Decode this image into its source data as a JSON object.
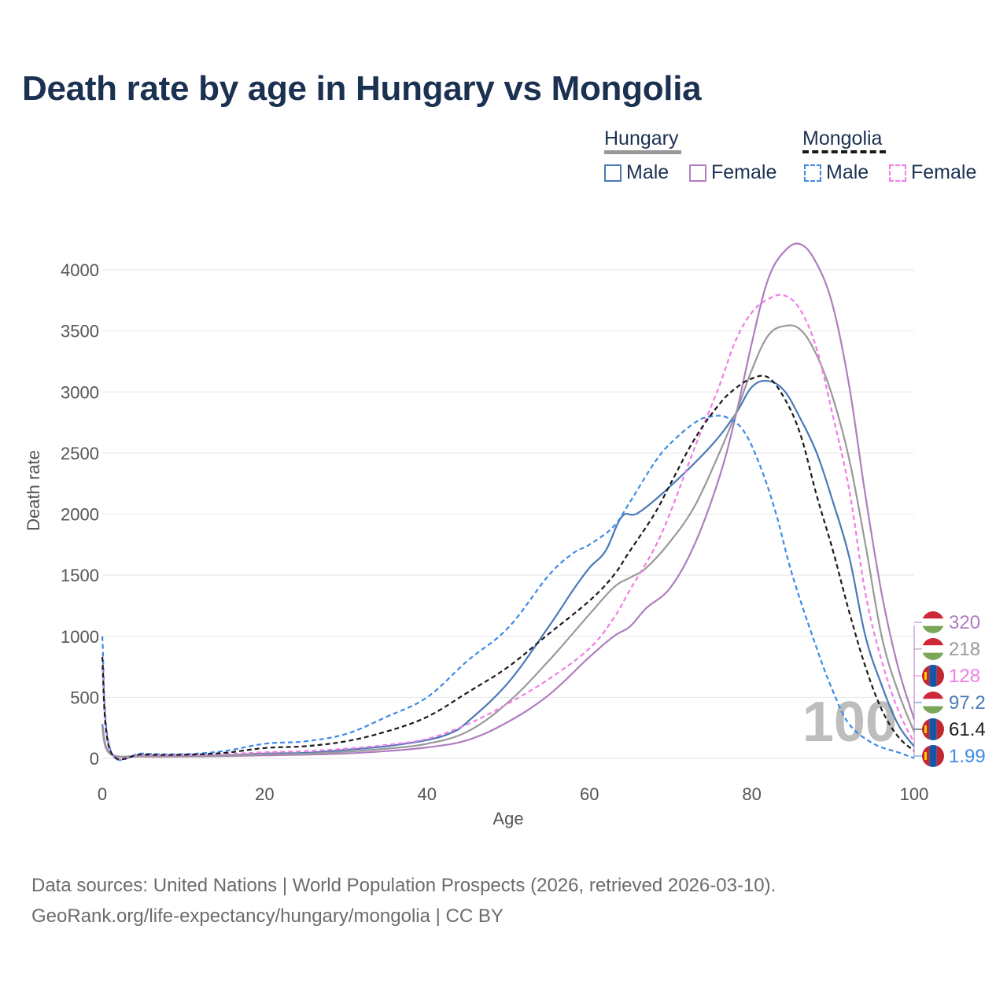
{
  "title": "Death rate by age in Hungary vs Mongolia",
  "legend": {
    "groups": [
      {
        "label": "Hungary",
        "line_color": "#999999",
        "dash": false
      },
      {
        "label": "Mongolia",
        "line_color": "#1a1a1a",
        "dash": true
      }
    ],
    "items": [
      {
        "label": "Male",
        "color": "#4a78b8",
        "dash": false
      },
      {
        "label": "Female",
        "color": "#b07cc0",
        "dash": false
      },
      {
        "label": "Male",
        "color": "#3d8be6",
        "dash": true
      },
      {
        "label": "Female",
        "color": "#f07ce8",
        "dash": true
      }
    ]
  },
  "source": {
    "line1": "Data sources: United Nations | World Population Prospects (2026, retrieved 2026-03-10).",
    "line2": "GeoRank.org/life-expectancy/hungary/mongolia | CC BY"
  },
  "chart_data": {
    "type": "line",
    "xlabel": "Age",
    "ylabel": "Death rate",
    "xlim": [
      0,
      100
    ],
    "ylim": [
      0,
      4000
    ],
    "xticks": [
      "0",
      "20",
      "40",
      "60",
      "80",
      "100"
    ],
    "yticks": [
      "0",
      "500",
      "1000",
      "1500",
      "2000",
      "2500",
      "3000",
      "3500",
      "4000"
    ],
    "year_label": "100",
    "series": [
      {
        "name": "Hungary Male",
        "color": "#4a78b8",
        "dash": false,
        "points": [
          [
            0,
            280
          ],
          [
            1,
            40
          ],
          [
            5,
            20
          ],
          [
            10,
            20
          ],
          [
            15,
            25
          ],
          [
            20,
            40
          ],
          [
            25,
            45
          ],
          [
            30,
            70
          ],
          [
            35,
            100
          ],
          [
            40,
            150
          ],
          [
            43,
            210
          ],
          [
            45,
            300
          ],
          [
            50,
            620
          ],
          [
            55,
            1080
          ],
          [
            58,
            1380
          ],
          [
            60,
            1560
          ],
          [
            62,
            1700
          ],
          [
            64,
            1980
          ],
          [
            66,
            2010
          ],
          [
            70,
            2230
          ],
          [
            75,
            2560
          ],
          [
            78,
            2820
          ],
          [
            80,
            3040
          ],
          [
            82,
            3090
          ],
          [
            84,
            3010
          ],
          [
            86,
            2780
          ],
          [
            88,
            2500
          ],
          [
            90,
            2100
          ],
          [
            92,
            1650
          ],
          [
            94,
            1000
          ],
          [
            96,
            600
          ],
          [
            98,
            280
          ],
          [
            100,
            97.2
          ]
        ]
      },
      {
        "name": "Hungary Female",
        "color": "#b07cc0",
        "dash": false,
        "points": [
          [
            0,
            240
          ],
          [
            1,
            35
          ],
          [
            5,
            15
          ],
          [
            10,
            15
          ],
          [
            15,
            18
          ],
          [
            20,
            25
          ],
          [
            25,
            30
          ],
          [
            30,
            40
          ],
          [
            35,
            60
          ],
          [
            40,
            90
          ],
          [
            45,
            150
          ],
          [
            50,
            300
          ],
          [
            55,
            520
          ],
          [
            60,
            830
          ],
          [
            63,
            1000
          ],
          [
            65,
            1080
          ],
          [
            67,
            1230
          ],
          [
            70,
            1400
          ],
          [
            73,
            1760
          ],
          [
            76,
            2300
          ],
          [
            78,
            2800
          ],
          [
            80,
            3400
          ],
          [
            82,
            3920
          ],
          [
            84,
            4150
          ],
          [
            86,
            4210
          ],
          [
            88,
            4050
          ],
          [
            90,
            3700
          ],
          [
            92,
            3050
          ],
          [
            94,
            2150
          ],
          [
            96,
            1350
          ],
          [
            98,
            750
          ],
          [
            100,
            320
          ]
        ]
      },
      {
        "name": "Hungary Both",
        "color": "#999999",
        "dash": false,
        "points": [
          [
            0,
            260
          ],
          [
            1,
            38
          ],
          [
            5,
            18
          ],
          [
            10,
            18
          ],
          [
            15,
            22
          ],
          [
            20,
            33
          ],
          [
            25,
            38
          ],
          [
            30,
            55
          ],
          [
            35,
            80
          ],
          [
            40,
            120
          ],
          [
            45,
            220
          ],
          [
            50,
            460
          ],
          [
            55,
            800
          ],
          [
            60,
            1180
          ],
          [
            63,
            1400
          ],
          [
            65,
            1480
          ],
          [
            67,
            1560
          ],
          [
            70,
            1780
          ],
          [
            73,
            2070
          ],
          [
            76,
            2500
          ],
          [
            78,
            2820
          ],
          [
            80,
            3180
          ],
          [
            82,
            3460
          ],
          [
            84,
            3540
          ],
          [
            86,
            3510
          ],
          [
            88,
            3300
          ],
          [
            90,
            2950
          ],
          [
            92,
            2450
          ],
          [
            94,
            1750
          ],
          [
            96,
            1000
          ],
          [
            98,
            550
          ],
          [
            100,
            218
          ]
        ]
      },
      {
        "name": "Mongolia Male",
        "color": "#3d8be6",
        "dash": true,
        "points": [
          [
            0,
            1000
          ],
          [
            1,
            70
          ],
          [
            5,
            40
          ],
          [
            10,
            35
          ],
          [
            15,
            60
          ],
          [
            20,
            120
          ],
          [
            25,
            140
          ],
          [
            30,
            200
          ],
          [
            35,
            340
          ],
          [
            40,
            500
          ],
          [
            45,
            800
          ],
          [
            50,
            1070
          ],
          [
            55,
            1500
          ],
          [
            58,
            1680
          ],
          [
            60,
            1750
          ],
          [
            63,
            1900
          ],
          [
            65,
            2100
          ],
          [
            68,
            2420
          ],
          [
            70,
            2580
          ],
          [
            73,
            2750
          ],
          [
            75,
            2800
          ],
          [
            77,
            2790
          ],
          [
            79,
            2680
          ],
          [
            81,
            2400
          ],
          [
            83,
            2000
          ],
          [
            85,
            1500
          ],
          [
            88,
            900
          ],
          [
            90,
            550
          ],
          [
            92,
            280
          ],
          [
            95,
            120
          ],
          [
            98,
            50
          ],
          [
            100,
            1.99
          ]
        ]
      },
      {
        "name": "Mongolia Female",
        "color": "#f07ce8",
        "dash": true,
        "points": [
          [
            0,
            750
          ],
          [
            1,
            55
          ],
          [
            5,
            28
          ],
          [
            10,
            25
          ],
          [
            15,
            35
          ],
          [
            20,
            50
          ],
          [
            25,
            60
          ],
          [
            30,
            80
          ],
          [
            35,
            110
          ],
          [
            40,
            160
          ],
          [
            45,
            280
          ],
          [
            50,
            450
          ],
          [
            55,
            650
          ],
          [
            60,
            900
          ],
          [
            63,
            1150
          ],
          [
            65,
            1380
          ],
          [
            68,
            1720
          ],
          [
            70,
            2020
          ],
          [
            73,
            2550
          ],
          [
            76,
            3050
          ],
          [
            78,
            3420
          ],
          [
            80,
            3650
          ],
          [
            82,
            3760
          ],
          [
            84,
            3790
          ],
          [
            86,
            3670
          ],
          [
            88,
            3350
          ],
          [
            90,
            2800
          ],
          [
            92,
            2200
          ],
          [
            94,
            1350
          ],
          [
            96,
            800
          ],
          [
            98,
            400
          ],
          [
            100,
            128
          ]
        ]
      },
      {
        "name": "Mongolia Both",
        "color": "#1a1a1a",
        "dash": true,
        "points": [
          [
            0,
            830
          ],
          [
            1,
            62
          ],
          [
            5,
            33
          ],
          [
            10,
            30
          ],
          [
            15,
            45
          ],
          [
            20,
            85
          ],
          [
            25,
            100
          ],
          [
            30,
            140
          ],
          [
            35,
            220
          ],
          [
            40,
            340
          ],
          [
            45,
            540
          ],
          [
            50,
            750
          ],
          [
            55,
            1020
          ],
          [
            60,
            1290
          ],
          [
            63,
            1500
          ],
          [
            65,
            1700
          ],
          [
            68,
            2000
          ],
          [
            70,
            2250
          ],
          [
            73,
            2620
          ],
          [
            76,
            2900
          ],
          [
            78,
            3030
          ],
          [
            80,
            3110
          ],
          [
            82,
            3120
          ],
          [
            84,
            2950
          ],
          [
            86,
            2650
          ],
          [
            88,
            2150
          ],
          [
            90,
            1700
          ],
          [
            92,
            1200
          ],
          [
            94,
            750
          ],
          [
            96,
            400
          ],
          [
            98,
            180
          ],
          [
            100,
            61.4
          ]
        ]
      }
    ],
    "end_labels": [
      {
        "value": "320",
        "color": "#b07cc0",
        "flag": "hungary"
      },
      {
        "value": "218",
        "color": "#999999",
        "flag": "hungary"
      },
      {
        "value": "128",
        "color": "#f07ce8",
        "flag": "mongolia"
      },
      {
        "value": "97.2",
        "color": "#4a78b8",
        "flag": "hungary"
      },
      {
        "value": "61.4",
        "color": "#1a1a1a",
        "flag": "mongolia"
      },
      {
        "value": "1.99",
        "color": "#3d8be6",
        "flag": "mongolia"
      }
    ]
  }
}
